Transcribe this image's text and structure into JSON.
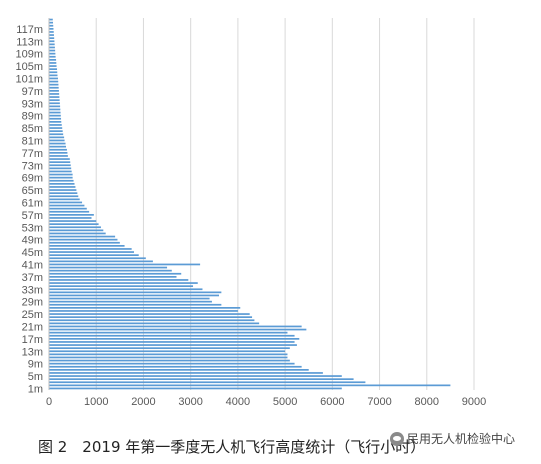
{
  "chart_data": {
    "type": "bar",
    "orientation": "horizontal",
    "categories": [
      "1m",
      "2m",
      "3m",
      "4m",
      "5m",
      "6m",
      "7m",
      "8m",
      "9m",
      "10m",
      "11m",
      "12m",
      "13m",
      "14m",
      "15m",
      "16m",
      "17m",
      "18m",
      "19m",
      "20m",
      "21m",
      "22m",
      "23m",
      "24m",
      "25m",
      "26m",
      "27m",
      "28m",
      "29m",
      "30m",
      "31m",
      "32m",
      "33m",
      "34m",
      "35m",
      "36m",
      "37m",
      "38m",
      "39m",
      "40m",
      "41m",
      "42m",
      "43m",
      "44m",
      "45m",
      "46m",
      "47m",
      "48m",
      "49m",
      "50m",
      "51m",
      "52m",
      "53m",
      "54m",
      "55m",
      "56m",
      "57m",
      "58m",
      "59m",
      "60m",
      "61m",
      "62m",
      "63m",
      "64m",
      "65m",
      "66m",
      "67m",
      "68m",
      "69m",
      "70m",
      "71m",
      "72m",
      "73m",
      "74m",
      "75m",
      "76m",
      "77m",
      "78m",
      "79m",
      "80m",
      "81m",
      "82m",
      "83m",
      "84m",
      "85m",
      "86m",
      "87m",
      "88m",
      "89m",
      "90m",
      "91m",
      "92m",
      "93m",
      "94m",
      "95m",
      "96m",
      "97m",
      "98m",
      "99m",
      "100m",
      "101m",
      "102m",
      "103m",
      "104m",
      "105m",
      "106m",
      "107m",
      "108m",
      "109m",
      "110m",
      "111m",
      "112m",
      "113m",
      "114m",
      "115m",
      "116m",
      "117m",
      "118m",
      "119m",
      "120m"
    ],
    "values": [
      6200,
      8500,
      6700,
      6450,
      6200,
      5800,
      5500,
      5350,
      5200,
      5100,
      5050,
      5050,
      5000,
      5100,
      5250,
      5200,
      5300,
      5200,
      5050,
      5450,
      5350,
      4450,
      4350,
      4300,
      4250,
      4000,
      4050,
      3650,
      3450,
      3400,
      3600,
      3650,
      3250,
      3050,
      3150,
      2950,
      2700,
      2800,
      2600,
      2500,
      3200,
      2200,
      2050,
      1900,
      1800,
      1750,
      1600,
      1500,
      1450,
      1400,
      1200,
      1150,
      1100,
      1050,
      1000,
      900,
      950,
      850,
      800,
      750,
      700,
      650,
      620,
      600,
      580,
      560,
      540,
      520,
      500,
      500,
      480,
      470,
      460,
      450,
      440,
      400,
      390,
      380,
      360,
      350,
      330,
      320,
      300,
      290,
      280,
      270,
      260,
      255,
      250,
      245,
      240,
      235,
      230,
      225,
      220,
      215,
      210,
      205,
      200,
      195,
      190,
      180,
      175,
      170,
      160,
      155,
      150,
      140,
      135,
      130,
      125,
      120,
      115,
      110,
      105,
      100,
      95,
      90,
      85,
      80
    ],
    "ytick_labels": [
      "1m",
      "5m",
      "9m",
      "13m",
      "17m",
      "21m",
      "25m",
      "29m",
      "33m",
      "37m",
      "41m",
      "45m",
      "49m",
      "53m",
      "57m",
      "61m",
      "65m",
      "69m",
      "73m",
      "77m",
      "81m",
      "85m",
      "89m",
      "93m",
      "97m",
      "101m",
      "105m",
      "109m",
      "113m",
      "117m"
    ],
    "xticks": [
      "0",
      "1000",
      "2000",
      "3000",
      "4000",
      "5000",
      "6000",
      "7000",
      "8000",
      "9000"
    ],
    "xlim": [
      0,
      9000
    ],
    "grid": "vertical",
    "legend": "none",
    "bar_color": "#5b9bd5"
  },
  "caption": "图 2　2019 年第一季度无人机飞行高度统计（飞行小时）",
  "watermark": "民用无人机检验中心"
}
